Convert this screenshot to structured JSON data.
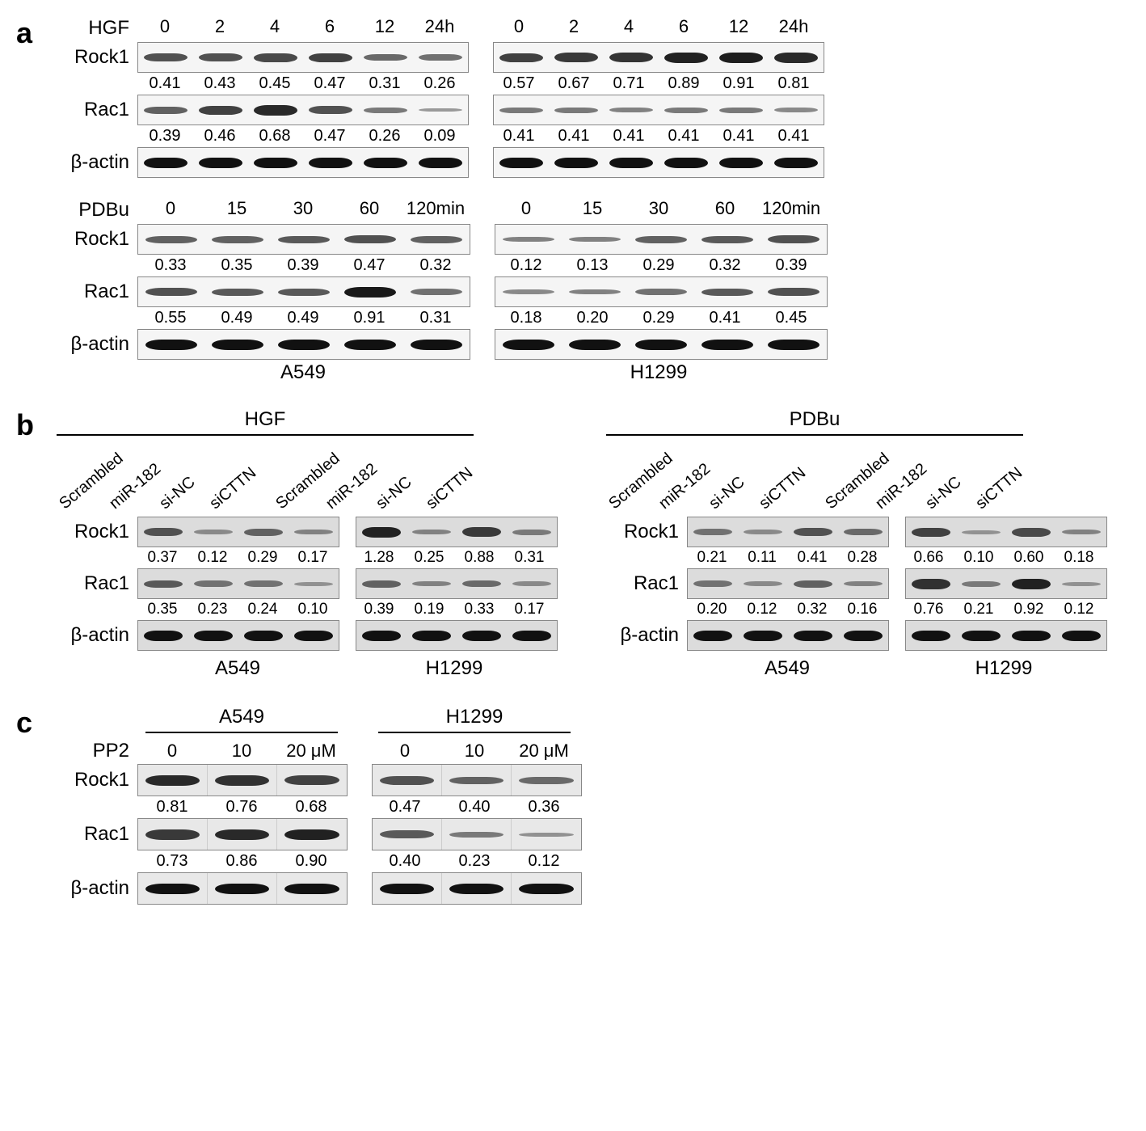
{
  "panelA": {
    "letter": "a",
    "laneW6": 68,
    "laneW5": 82,
    "blotH": 36,
    "cellLines": [
      "A549",
      "H1299"
    ],
    "groups": [
      {
        "treatLabel": "HGF",
        "timepoints": [
          "0",
          "2",
          "4",
          "6",
          "12",
          "24h"
        ],
        "rows": [
          {
            "label": "Rock1",
            "numbers": [
              [
                "0.41",
                "0.43",
                "0.45",
                "0.47",
                "0.31",
                "0.26"
              ],
              [
                "0.57",
                "0.67",
                "0.71",
                "0.89",
                "0.91",
                "0.81"
              ]
            ],
            "intens": [
              [
                0.6,
                0.6,
                0.65,
                0.7,
                0.45,
                0.4
              ],
              [
                0.7,
                0.75,
                0.78,
                0.9,
                0.92,
                0.85
              ]
            ]
          },
          {
            "label": "Rac1",
            "numbers": [
              [
                "0.39",
                "0.46",
                "0.68",
                "0.47",
                "0.26",
                "0.09"
              ],
              [
                "0.41",
                "0.41",
                "0.41",
                "0.41",
                "0.41",
                "0.41"
              ]
            ],
            "intens": [
              [
                0.5,
                0.7,
                0.85,
                0.6,
                0.35,
                0.15
              ],
              [
                0.35,
                0.35,
                0.3,
                0.35,
                0.35,
                0.25
              ]
            ]
          },
          {
            "label": "β-actin",
            "numbers": null,
            "intens": [
              [
                1,
                1,
                1,
                1,
                1,
                1
              ],
              [
                1,
                1,
                1,
                1,
                1,
                1
              ]
            ]
          }
        ]
      },
      {
        "treatLabel": "PDBu",
        "timepoints": [
          "0",
          "15",
          "30",
          "60",
          "120min"
        ],
        "rows": [
          {
            "label": "Rock1",
            "numbers": [
              [
                "0.33",
                "0.35",
                "0.39",
                "0.47",
                "0.32"
              ],
              [
                "0.12",
                "0.13",
                "0.29",
                "0.32",
                "0.39"
              ]
            ],
            "intens": [
              [
                0.5,
                0.5,
                0.55,
                0.6,
                0.5
              ],
              [
                0.3,
                0.3,
                0.5,
                0.55,
                0.6
              ]
            ]
          },
          {
            "label": "Rac1",
            "numbers": [
              [
                "0.55",
                "0.49",
                "0.49",
                "0.91",
                "0.31"
              ],
              [
                "0.18",
                "0.20",
                "0.29",
                "0.41",
                "0.45"
              ]
            ],
            "intens": [
              [
                0.6,
                0.55,
                0.55,
                0.95,
                0.4
              ],
              [
                0.25,
                0.3,
                0.4,
                0.55,
                0.6
              ]
            ]
          },
          {
            "label": "β-actin",
            "numbers": null,
            "intens": [
              [
                1,
                1,
                1,
                1,
                1
              ],
              [
                1,
                1,
                1,
                1,
                1
              ]
            ]
          }
        ]
      }
    ]
  },
  "panelB": {
    "letter": "b",
    "laneW": 62,
    "blotH": 36,
    "conditions": [
      "Scrambled",
      "miR-182",
      "si-NC",
      "siCTTN"
    ],
    "rowLabels": [
      "Rock1",
      "Rac1",
      "β-actin"
    ],
    "cellLines": [
      "A549",
      "H1299"
    ],
    "treatments": [
      {
        "title": "HGF",
        "cells": [
          {
            "rock1": [
              "0.37",
              "0.12",
              "0.29",
              "0.17"
            ],
            "rock1_int": [
              0.6,
              0.25,
              0.5,
              0.3
            ],
            "rac1": [
              "0.35",
              "0.23",
              "0.24",
              "0.10"
            ],
            "rac1_int": [
              0.55,
              0.4,
              0.4,
              0.2
            ],
            "actin_int": [
              1,
              1,
              1,
              1
            ]
          },
          {
            "rock1": [
              "1.28",
              "0.25",
              "0.88",
              "0.31"
            ],
            "rock1_int": [
              0.9,
              0.3,
              0.75,
              0.35
            ],
            "rac1": [
              "0.39",
              "0.19",
              "0.33",
              "0.17"
            ],
            "rac1_int": [
              0.5,
              0.3,
              0.45,
              0.25
            ],
            "actin_int": [
              1,
              1,
              1,
              1
            ]
          }
        ]
      },
      {
        "title": "PDBu",
        "cells": [
          {
            "rock1": [
              "0.21",
              "0.11",
              "0.41",
              "0.28"
            ],
            "rock1_int": [
              0.4,
              0.25,
              0.6,
              0.45
            ],
            "rac1": [
              "0.20",
              "0.12",
              "0.32",
              "0.16"
            ],
            "rac1_int": [
              0.4,
              0.25,
              0.5,
              0.3
            ],
            "actin_int": [
              1,
              1,
              1,
              1
            ]
          },
          {
            "rock1": [
              "0.66",
              "0.10",
              "0.60",
              "0.18"
            ],
            "rock1_int": [
              0.7,
              0.2,
              0.65,
              0.3
            ],
            "rac1": [
              "0.76",
              "0.21",
              "0.92",
              "0.12"
            ],
            "rac1_int": [
              0.8,
              0.35,
              0.9,
              0.2
            ],
            "actin_int": [
              1,
              1,
              1,
              1
            ]
          }
        ]
      }
    ]
  },
  "panelC": {
    "letter": "c",
    "laneW": 86,
    "blotH": 38,
    "treatLabel": "PP2",
    "doses": [
      "0",
      "10",
      "20 μM"
    ],
    "cellLines": [
      "A549",
      "H1299"
    ],
    "rows": [
      {
        "label": "Rock1",
        "numbers": [
          [
            "0.81",
            "0.76",
            "0.68"
          ],
          [
            "0.47",
            "0.40",
            "0.36"
          ]
        ],
        "intens": [
          [
            0.85,
            0.8,
            0.7
          ],
          [
            0.6,
            0.5,
            0.45
          ]
        ]
      },
      {
        "label": "Rac1",
        "numbers": [
          [
            "0.73",
            "0.86",
            "0.90"
          ],
          [
            "0.40",
            "0.23",
            "0.12"
          ]
        ],
        "intens": [
          [
            0.75,
            0.85,
            0.9
          ],
          [
            0.55,
            0.35,
            0.2
          ]
        ]
      },
      {
        "label": "β-actin",
        "numbers": null,
        "intens": [
          [
            1,
            1,
            1
          ],
          [
            1,
            1,
            1
          ]
        ]
      }
    ]
  }
}
